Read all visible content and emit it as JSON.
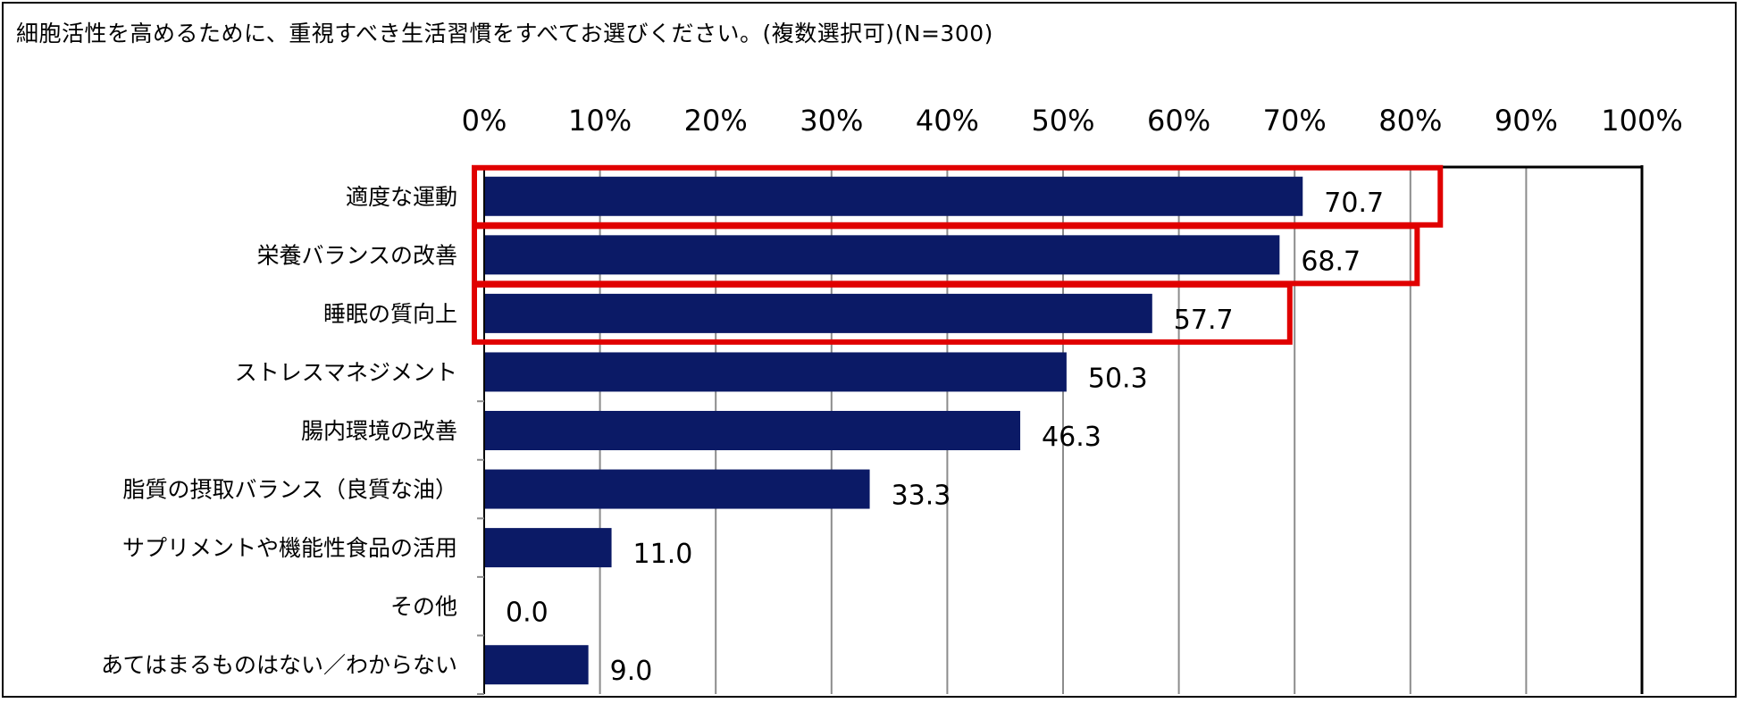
{
  "title": "細胞活性を高めるために、重視すべき生活習慣をすべてお選びください。(複数選択可)(N=300)",
  "chart_data": {
    "type": "bar",
    "orientation": "horizontal",
    "title": "細胞活性を高めるために、重視すべき生活習慣をすべてお選びください。(複数選択可)(N=300)",
    "xlim": [
      0,
      100
    ],
    "xticks": [
      "0%",
      "10%",
      "20%",
      "30%",
      "40%",
      "50%",
      "60%",
      "70%",
      "80%",
      "90%",
      "100%"
    ],
    "xaxis_position": "top",
    "grid": true,
    "bar_color": "#0b1a66",
    "highlight_color": "#e00000",
    "categories": [
      "適度な運動",
      "栄養バランスの改善",
      "睡眠の質向上",
      "ストレスマネジメント",
      "腸内環境の改善",
      "脂質の摂取バランス（良質な油）",
      "サプリメントや機能性食品の活用",
      "その他",
      "あてはまるものはない／わからない"
    ],
    "values": [
      70.7,
      68.7,
      57.7,
      50.3,
      46.3,
      33.3,
      11.0,
      0.0,
      9.0
    ],
    "value_labels": [
      "70.7",
      "68.7",
      "57.7",
      "50.3",
      "46.3",
      "33.3",
      "11.0",
      "0.0",
      "9.0"
    ],
    "highlighted_categories": [
      0,
      1,
      2
    ]
  }
}
